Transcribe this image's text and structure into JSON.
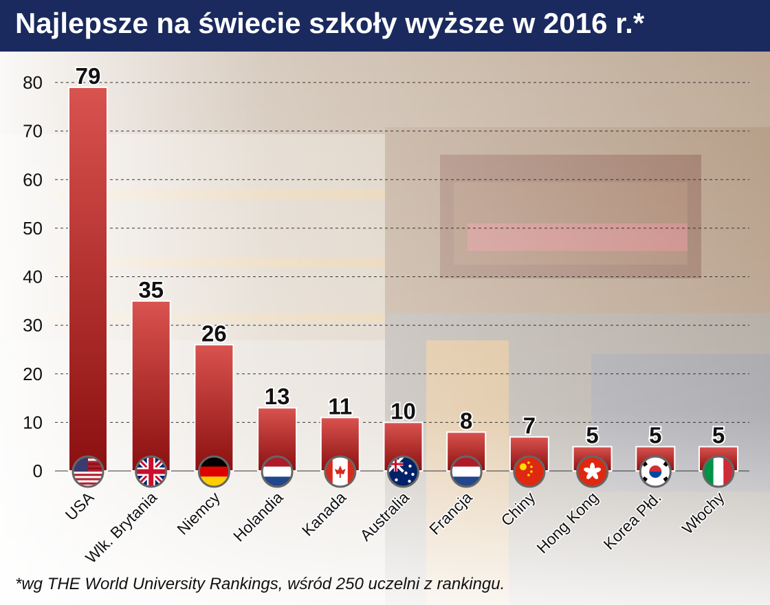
{
  "title": "Najlepsze na świecie szkoły wyższe w 2016 r.*",
  "footnote": "*wg THE World University Rankings, wśród 250 uczelni z rankingu.",
  "colors": {
    "title_bg": "#1a2a5e",
    "bar_top": "#d9534f",
    "bar_bottom": "#8b1010",
    "grid": "#333333"
  },
  "chart_data": {
    "type": "bar",
    "categories": [
      "USA",
      "Wlk. Brytania",
      "Niemcy",
      "Holandia",
      "Kanada",
      "Australia",
      "Francja",
      "Chiny",
      "Hong Kong",
      "Korea Płd.",
      "Włochy"
    ],
    "values": [
      79,
      35,
      26,
      13,
      11,
      10,
      8,
      7,
      5,
      5,
      5
    ],
    "data_labels": [
      "79",
      "35",
      "26",
      "13",
      "11",
      "10",
      "8",
      "7",
      "5",
      "5",
      "5"
    ],
    "flags": [
      "us-flag-icon",
      "uk-flag-icon",
      "germany-flag-icon",
      "netherlands-flag-icon",
      "canada-flag-icon",
      "australia-flag-icon",
      "france-flag-icon",
      "china-flag-icon",
      "hongkong-flag-icon",
      "korea-flag-icon",
      "italy-flag-icon"
    ],
    "yticks": [
      "0",
      "10",
      "20",
      "30",
      "40",
      "50",
      "60",
      "70",
      "80"
    ],
    "ylim": [
      0,
      80
    ],
    "grid": true,
    "xlabel": "",
    "ylabel": ""
  }
}
